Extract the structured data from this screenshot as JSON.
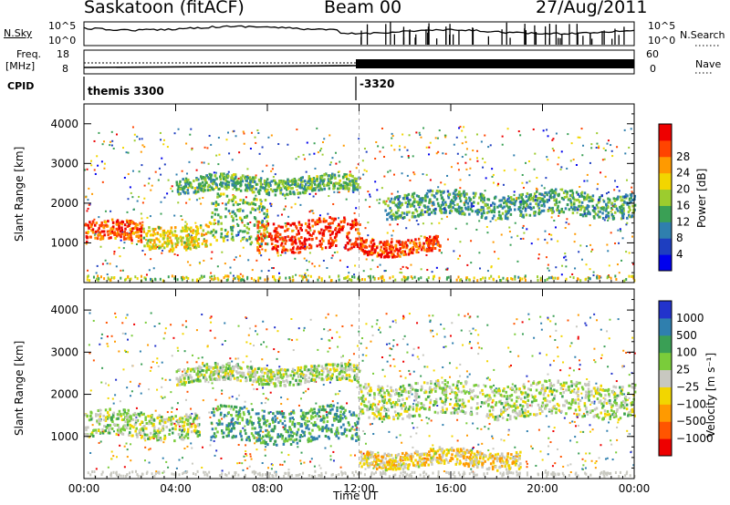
{
  "header": {
    "site": "Saskatoon (fitACF)",
    "beam": "Beam 00",
    "date": "27/Aug/2011"
  },
  "strips": {
    "nsky_label": "N.Sky",
    "nsky_ticks": [
      "10^5",
      "10^0"
    ],
    "nsearch_label": "N.Search",
    "nsearch_ticks": [
      "10^5",
      "10^0"
    ],
    "freq_label_1": "Freq.",
    "freq_label_2": "[MHz]",
    "freq_ticks": [
      "18",
      "8"
    ],
    "nave_label": "Nave",
    "nave_ticks": [
      "60",
      "0"
    ],
    "cpid_label": "CPID",
    "cpid_segments": [
      {
        "label": "themis 3300",
        "start_hour": 0
      },
      {
        "label": "-3320",
        "start_hour": 12
      }
    ]
  },
  "chart_data": [
    {
      "type": "heatmap",
      "title": "",
      "xlabel": "",
      "ylabel": "Slant Range [km]",
      "xlim": [
        0,
        24
      ],
      "ylim": [
        0,
        4500
      ],
      "y_ticks": [
        1000,
        2000,
        3000,
        4000
      ],
      "colorbar": {
        "label": "Power [dB]",
        "ticks": [
          "4",
          "8",
          "12",
          "16",
          "20",
          "24",
          "28"
        ],
        "colors": [
          "#0000ee",
          "#1e3ec0",
          "#2f7fae",
          "#3aa055",
          "#9ccc2e",
          "#f2d600",
          "#ff9a00",
          "#ff4400",
          "#ee0000"
        ]
      },
      "bands": [
        {
          "start": 0.0,
          "end": 2.5,
          "range_km": 1300,
          "width_km": 250,
          "value_level": 0.85
        },
        {
          "start": 2.5,
          "end": 5.5,
          "range_km": 1200,
          "width_km": 300,
          "value_level": 0.6
        },
        {
          "start": 5.5,
          "end": 8.0,
          "range_km": 1600,
          "width_km": 600,
          "value_level": 0.45
        },
        {
          "start": 7.5,
          "end": 12.0,
          "range_km": 1200,
          "width_km": 400,
          "value_level": 0.95
        },
        {
          "start": 12.0,
          "end": 15.5,
          "range_km": 950,
          "width_km": 200,
          "value_level": 0.9
        },
        {
          "start": 13.0,
          "end": 24.0,
          "range_km": 2000,
          "width_km": 300,
          "value_level": 0.35
        },
        {
          "start": 4.0,
          "end": 12.0,
          "range_km": 2500,
          "width_km": 200,
          "value_level": 0.4
        }
      ]
    },
    {
      "type": "heatmap",
      "title": "",
      "xlabel": "Time UT",
      "ylabel": "Slant Range [km]",
      "xlim": [
        0,
        24
      ],
      "ylim": [
        0,
        4500
      ],
      "x_ticks": [
        "00:00",
        "04:00",
        "08:00",
        "12:00",
        "16:00",
        "20:00",
        "00:00"
      ],
      "y_ticks": [
        1000,
        2000,
        3000,
        4000
      ],
      "colorbar": {
        "label": "Velocity [m s⁻¹]",
        "ticks": [
          "1000",
          "500",
          "100",
          "25",
          "−25",
          "−100",
          "−500",
          "−1000"
        ],
        "colors": [
          "#2233cc",
          "#2f7fae",
          "#3a9f55",
          "#7acc3a",
          "#c8c8c0",
          "#f2d600",
          "#ff9a00",
          "#ff5500",
          "#ee0000"
        ]
      },
      "bands": [
        {
          "start": 0.0,
          "end": 5.0,
          "range_km": 1300,
          "width_km": 300,
          "value_level": 0.45
        },
        {
          "start": 5.5,
          "end": 12.0,
          "range_km": 1300,
          "width_km": 400,
          "value_level": 0.25
        },
        {
          "start": 12.0,
          "end": 24.0,
          "range_km": 1900,
          "width_km": 400,
          "value_level": 0.45
        },
        {
          "start": 12.0,
          "end": 19.0,
          "range_km": 500,
          "width_km": 200,
          "value_level": 0.6
        },
        {
          "start": 4.0,
          "end": 12.0,
          "range_km": 2500,
          "width_km": 200,
          "value_level": 0.45
        }
      ]
    }
  ]
}
